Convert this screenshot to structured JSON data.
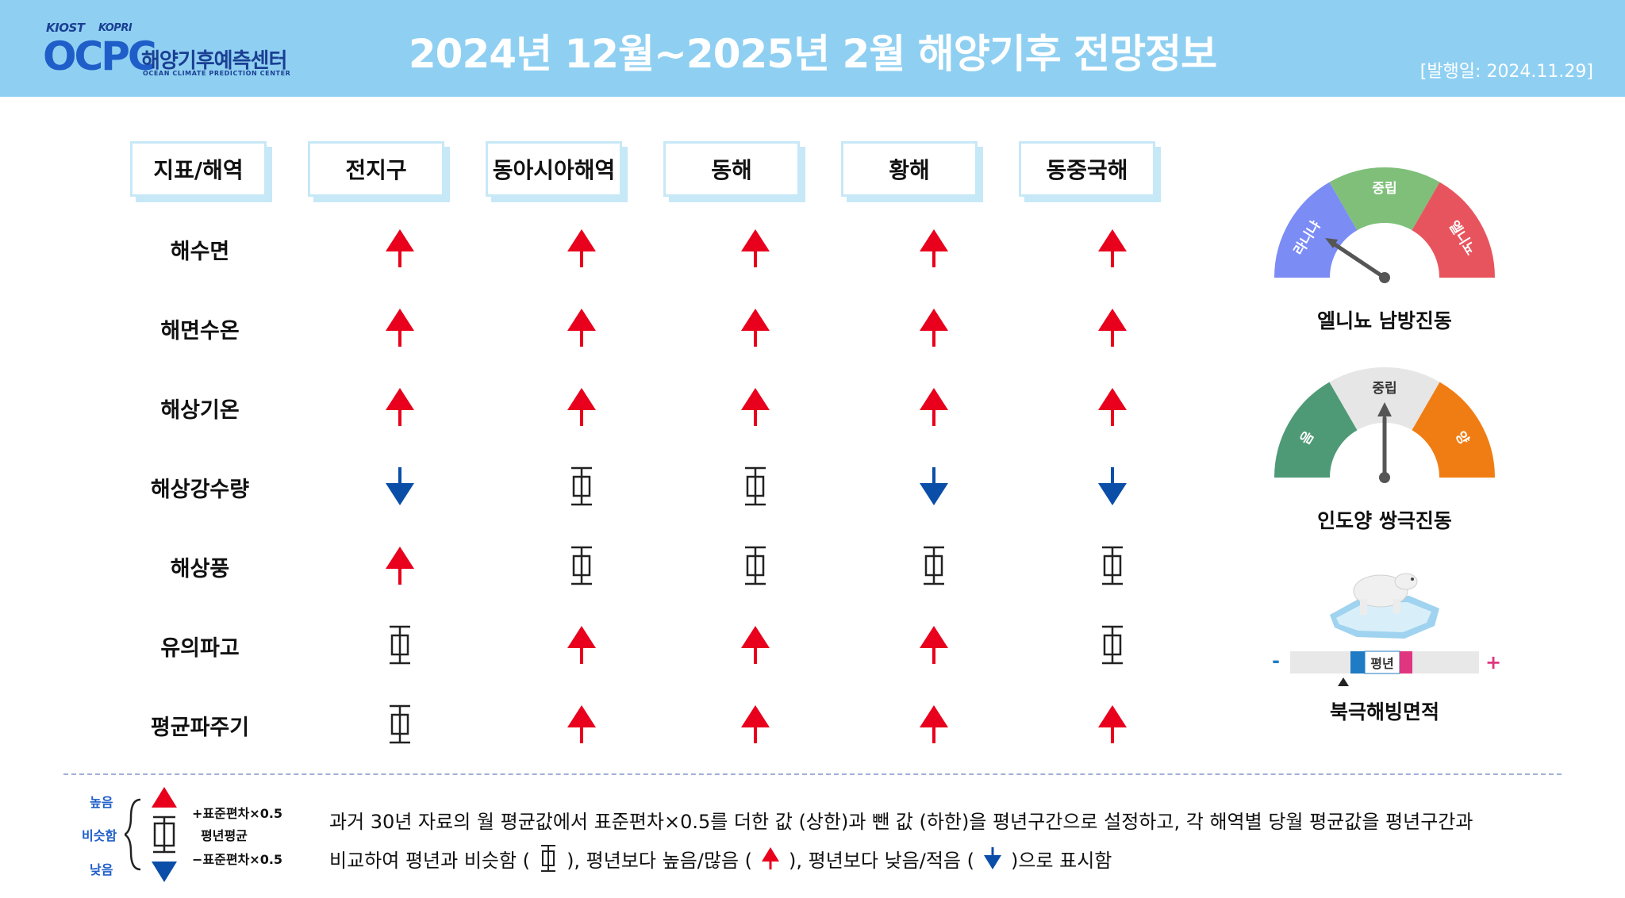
{
  "header": {
    "logo_small_1": "KIOST",
    "logo_small_2": "KOPRI",
    "logo_big": "OCPC",
    "logo_kor": "해양기후예측센터",
    "logo_eng": "OCEAN CLIMATE PREDICTION CENTER",
    "title": "2024년 12월~2025년 2월 해양기후 전망정보",
    "pubdate": "[발행일: 2024.11.29]"
  },
  "table": {
    "columns": [
      "지표/해역",
      "전지구",
      "동아시아해역",
      "동해",
      "황해",
      "동중국해"
    ],
    "rows": [
      {
        "label": "해수면",
        "values": [
          "up",
          "up",
          "up",
          "up",
          "up"
        ]
      },
      {
        "label": "해면수온",
        "values": [
          "up",
          "up",
          "up",
          "up",
          "up"
        ]
      },
      {
        "label": "해상기온",
        "values": [
          "up",
          "up",
          "up",
          "up",
          "up"
        ]
      },
      {
        "label": "해상강수량",
        "values": [
          "down",
          "normal",
          "normal",
          "down",
          "down"
        ]
      },
      {
        "label": "해상풍",
        "values": [
          "up",
          "normal",
          "normal",
          "normal",
          "normal"
        ]
      },
      {
        "label": "유의파고",
        "values": [
          "normal",
          "up",
          "up",
          "up",
          "normal"
        ]
      },
      {
        "label": "평균파주기",
        "values": [
          "normal",
          "up",
          "up",
          "up",
          "up"
        ]
      }
    ]
  },
  "indicators": {
    "enso": {
      "title": "엘니뇨 남방진동",
      "left": "라니냐",
      "center": "중립",
      "right": "엘니뇨",
      "left_color": "#7b8cf5",
      "center_color": "#7fbf7a",
      "right_color": "#e8545d",
      "state": "라니냐"
    },
    "iod": {
      "title": "인도양 쌍극진동",
      "left": "음",
      "center": "중립",
      "right": "양",
      "left_color": "#4f9a76",
      "center_color": "#e6e6e6",
      "right_color": "#f07d13",
      "state": "중립"
    },
    "sea_ice": {
      "title": "북극해빙면적",
      "minus": "-",
      "plus": "+",
      "normal_label": "평년",
      "state": "below normal",
      "icon": "polar-bear-icon"
    }
  },
  "legend": {
    "high": "높음",
    "similar": "비슷함",
    "low": "낮음",
    "upper": "+표준편차×0.5",
    "mean": "평년평균",
    "lower": "−표준편차×0.5",
    "line1": "과거 30년 자료의 월 평균값에서 표준편차×0.5를   더한 값 (상한)과 뺀 값 (하한)을 평년구간으로   설정하고, 각 해역별  당월 평균값을 평년구간과",
    "line2_a": "비교하여 평년과 비슷함 (",
    "line2_b": "),   평년보다  높음/많음 (",
    "line2_c": "), 평년보다  낮음/적음 (",
    "line2_d": ")으로  표시함"
  },
  "colors": {
    "up": "#e8001c",
    "down": "#0a4ea8",
    "header_bg": "#8fd0f2"
  }
}
